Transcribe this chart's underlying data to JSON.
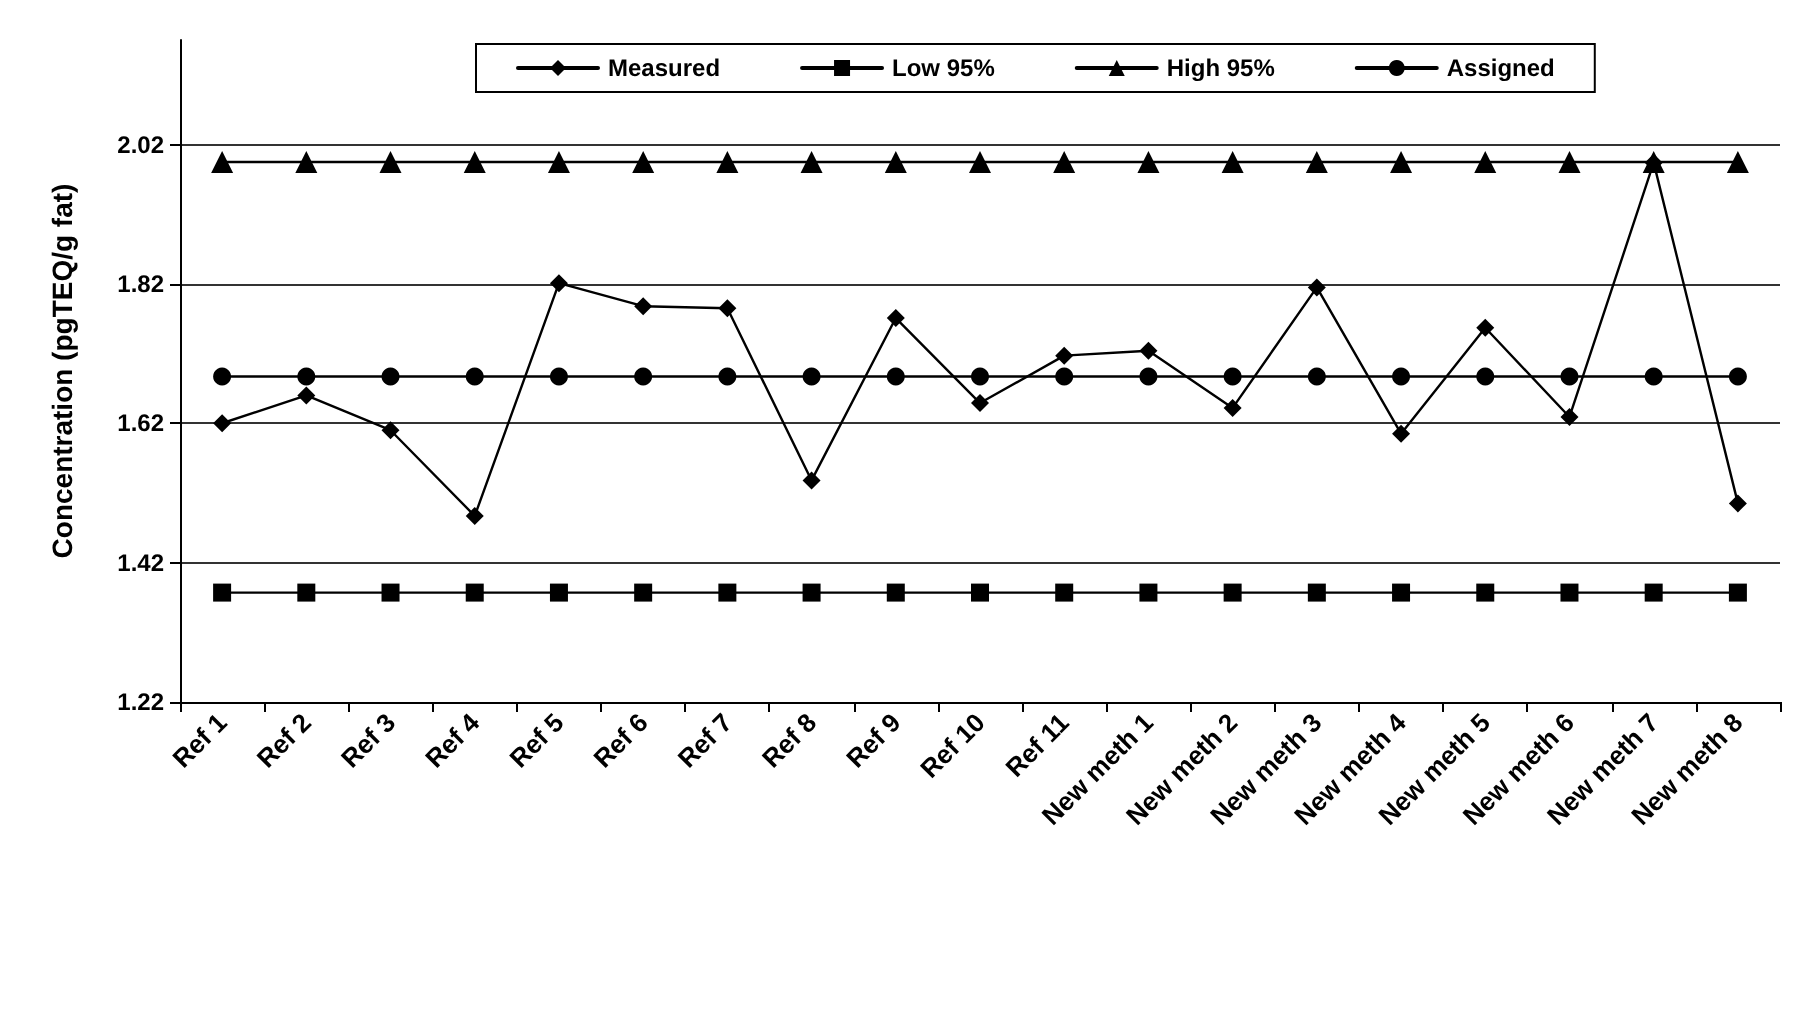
{
  "chart_data": {
    "type": "line",
    "ylabel": "Concentration (pgTEQ/g fat)",
    "categories": [
      "Ref 1",
      "Ref 2",
      "Ref 3",
      "Ref 4",
      "Ref 5",
      "Ref 6",
      "Ref 7",
      "Ref 8",
      "Ref 9",
      "Ref 10",
      "Ref 11",
      "New meth 1",
      "New meth 2",
      "New meth 3",
      "New meth 4",
      "New meth 5",
      "New meth 6",
      "New meth 7",
      "New meth 8"
    ],
    "series": [
      {
        "name": "Measured",
        "color": "#000000",
        "marker": "diamond",
        "values": [
          1.62,
          1.66,
          1.61,
          1.487,
          1.821,
          1.788,
          1.785,
          1.538,
          1.771,
          1.649,
          1.717,
          1.724,
          1.642,
          1.815,
          1.605,
          1.757,
          1.629,
          1.994,
          1.505
        ]
      },
      {
        "name": "Low 95%",
        "color": "#000000",
        "marker": "square",
        "values": [
          1.377,
          1.377,
          1.377,
          1.377,
          1.377,
          1.377,
          1.377,
          1.377,
          1.377,
          1.377,
          1.377,
          1.377,
          1.377,
          1.377,
          1.377,
          1.377,
          1.377,
          1.377,
          1.377
        ]
      },
      {
        "name": "High 95%",
        "color": "#000000",
        "marker": "triangle",
        "values": [
          1.995,
          1.995,
          1.995,
          1.995,
          1.995,
          1.995,
          1.995,
          1.995,
          1.995,
          1.995,
          1.995,
          1.995,
          1.995,
          1.995,
          1.995,
          1.995,
          1.995,
          1.995,
          1.995
        ]
      },
      {
        "name": "Assigned",
        "color": "#000000",
        "marker": "circle",
        "values": [
          1.687,
          1.687,
          1.687,
          1.687,
          1.687,
          1.687,
          1.687,
          1.687,
          1.687,
          1.687,
          1.687,
          1.687,
          1.687,
          1.687,
          1.687,
          1.687,
          1.687,
          1.687,
          1.687
        ]
      }
    ],
    "ylim": [
      1.22,
      2.17
    ],
    "yticks": [
      1.22,
      1.42,
      1.62,
      1.82,
      2.02
    ],
    "grid": "y",
    "legend": "top",
    "line_style": "solid"
  }
}
